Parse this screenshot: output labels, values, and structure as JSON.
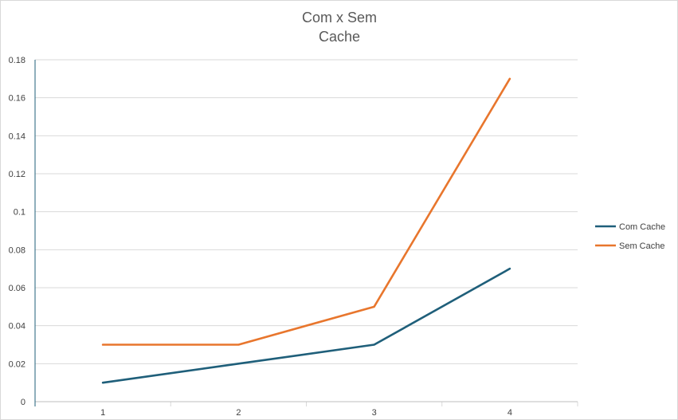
{
  "chart_data": {
    "type": "line",
    "title_lines": [
      "Com x Sem",
      "Cache"
    ],
    "xlabel": "",
    "ylabel": "",
    "categories": [
      "1",
      "2",
      "3",
      "4"
    ],
    "ylim": [
      0,
      0.18
    ],
    "yticks": [
      0,
      0.02,
      0.04,
      0.06,
      0.08,
      0.1,
      0.12,
      0.14,
      0.16,
      0.18
    ],
    "ytick_labels": [
      "0",
      "0.02",
      "0.04",
      "0.06",
      "0.08",
      "0.1",
      "0.12",
      "0.14",
      "0.16",
      "0.18"
    ],
    "grid": true,
    "legend_position": "right",
    "series": [
      {
        "name": "Com Cache",
        "color": "#1f5f7a",
        "values": [
          0.01,
          0.02,
          0.03,
          0.07
        ]
      },
      {
        "name": "Sem Cache",
        "color": "#e8762d",
        "values": [
          0.03,
          0.03,
          0.05,
          0.17
        ]
      }
    ]
  }
}
